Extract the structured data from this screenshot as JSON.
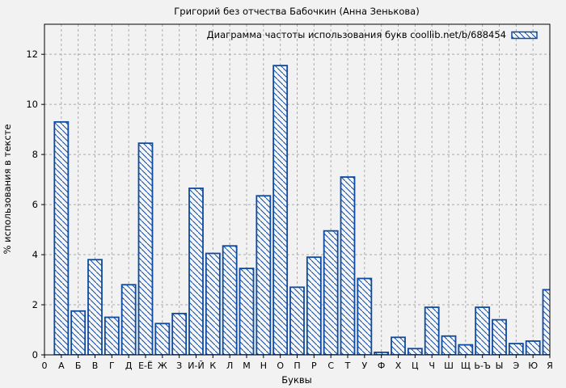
{
  "chart_data": {
    "type": "bar",
    "title": "Григорий без отчества Бабочкин (Анна Зенькова)",
    "legend": "Диаграмма частоты использования букв coollib.net/b/688454",
    "xlabel": "Буквы",
    "ylabel": "% использования в тексте",
    "x_origin_label": "0",
    "categories": [
      "А",
      "Б",
      "В",
      "Г",
      "Д",
      "Е-Ё",
      "Ж",
      "З",
      "И-Й",
      "К",
      "Л",
      "М",
      "Н",
      "О",
      "П",
      "Р",
      "С",
      "Т",
      "У",
      "Ф",
      "Х",
      "Ц",
      "Ч",
      "Ш",
      "Щ",
      "Ь-Ъ",
      "Ы",
      "Э",
      "Ю",
      "Я"
    ],
    "values": [
      9.3,
      1.75,
      3.8,
      1.5,
      2.8,
      8.45,
      1.25,
      1.65,
      6.65,
      4.05,
      4.35,
      3.45,
      6.35,
      11.55,
      2.7,
      3.9,
      4.95,
      7.1,
      3.05,
      0.1,
      0.7,
      0.25,
      1.9,
      0.75,
      0.4,
      1.9,
      1.4,
      0.45,
      0.55,
      2.6
    ],
    "yticks": [
      0,
      2,
      4,
      6,
      8,
      10,
      12
    ],
    "ylim": [
      0,
      13.2
    ],
    "grid": true,
    "legend_position": "top-right",
    "hatch": "diagonal-backslash",
    "bar_color": "#0d4aa0",
    "bar_fill_bg": "#f6f6f6",
    "background": "#f2f2f2",
    "grid_color": "#aaaaaa"
  }
}
